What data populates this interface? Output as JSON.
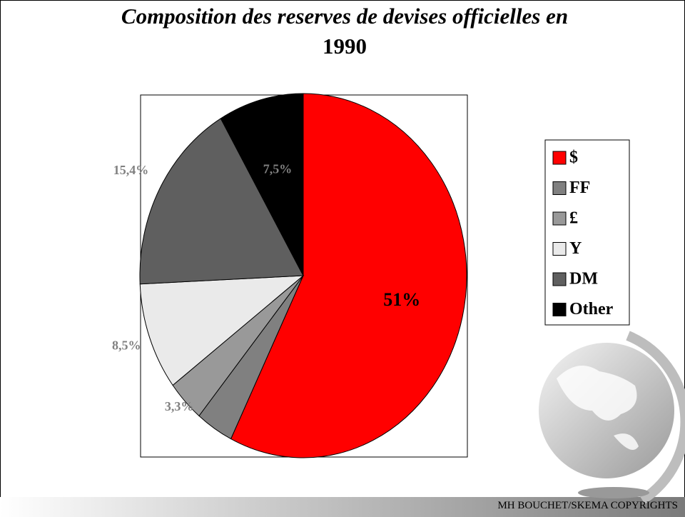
{
  "chart_data": {
    "type": "pie",
    "title": [
      "Composition des reserves de devises officielles en",
      "1990"
    ],
    "categories": [
      "$",
      "FF",
      "£",
      "Y",
      "DM",
      "Other"
    ],
    "values": [
      51,
      3.3,
      3.3,
      8.5,
      15.4,
      7.5
    ],
    "value_labels": [
      "51%",
      null,
      "3,3%",
      "8,5%",
      "15,4%",
      "7,5%"
    ],
    "colors": [
      "#ff0000",
      "#808080",
      "#999999",
      "#eaeaea",
      "#5f5f5f",
      "#000000"
    ],
    "legend": "right"
  },
  "footer": "MH BOUCHET/SKEMA COPYRIGHTS"
}
